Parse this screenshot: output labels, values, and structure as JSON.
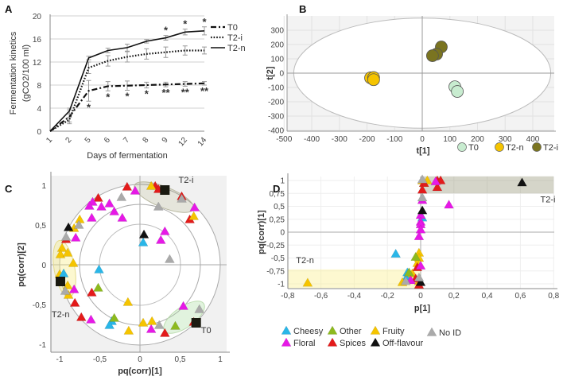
{
  "colors": {
    "T0_line": "#111111",
    "cheesy": "#29b6e8",
    "floral": "#e619e6",
    "other": "#8dba1e",
    "spices": "#e31b1b",
    "fruity": "#f5c400",
    "off_flavour": "#111111",
    "no_id": "#aaaaaa",
    "T0_score": "#c8ecd0",
    "T2n_score": "#f5c400",
    "T2i_score": "#7a7420"
  },
  "chart_data": [
    {
      "panel": "A",
      "type": "line",
      "ylabel": "Fermentation kinetics",
      "ylabel2": "(gCO2/100 ml)",
      "xlabel": "Days of fermentation",
      "categories": [
        "1",
        "2",
        "5",
        "6",
        "7",
        "8",
        "9",
        "12",
        "14"
      ],
      "yticks": [
        0,
        4,
        8,
        12,
        16,
        20
      ],
      "ylim": [
        0,
        20
      ],
      "grid": true,
      "legend": "right",
      "series": [
        {
          "name": "T0",
          "style": "dash-dot",
          "values": [
            0,
            2.5,
            7,
            7.8,
            7.9,
            8,
            8.1,
            8.2,
            8.3
          ],
          "errors": [
            0,
            1.2,
            1.8,
            0.8,
            0.8,
            0.5,
            0.4,
            0.4,
            0.3
          ],
          "stars_below": [
            "",
            "",
            "*",
            "*",
            "*",
            "*",
            "**",
            "**",
            "**"
          ]
        },
        {
          "name": "T2-i",
          "style": "dotted",
          "values": [
            0,
            2,
            11,
            12.2,
            12.9,
            13.4,
            13.7,
            14,
            14
          ],
          "errors": [
            0,
            0.4,
            1,
            0.9,
            0.9,
            0.9,
            0.9,
            0.8,
            0.6
          ]
        },
        {
          "name": "T2-n",
          "style": "solid",
          "values": [
            0,
            3.5,
            12.7,
            14,
            14.5,
            15.6,
            16.2,
            17.2,
            17.4
          ],
          "errors": [
            0,
            0.5,
            0.3,
            0.4,
            0.6,
            0.3,
            0.4,
            0.5,
            0.7
          ],
          "stars_above": [
            "",
            "",
            "",
            "",
            "",
            "",
            "*",
            "*",
            "*"
          ]
        }
      ]
    },
    {
      "panel": "B",
      "type": "scatter",
      "xlabel": "t[1]",
      "ylabel": "t[2]",
      "xticks": [
        -500,
        -400,
        -300,
        -200,
        -100,
        0,
        100,
        200,
        300,
        400
      ],
      "yticks": [
        300,
        200,
        100,
        0,
        -100,
        -200,
        -300,
        -400
      ],
      "xlim": [
        -500,
        470
      ],
      "ylim": [
        -400,
        400
      ],
      "legend": "bottom-right",
      "series": [
        {
          "name": "T0",
          "color_key": "T0_score",
          "points": [
            [
              118,
              -95
            ],
            [
              127,
              -128
            ]
          ]
        },
        {
          "name": "T2-n",
          "color_key": "T2n_score",
          "points": [
            [
              -187,
              -33
            ],
            [
              -176,
              -31
            ],
            [
              -176,
              -46
            ]
          ]
        },
        {
          "name": "T2-i",
          "color_key": "T2i_score",
          "points": [
            [
              69,
              183
            ],
            [
              52,
              133
            ],
            [
              37,
              122
            ]
          ]
        }
      ]
    },
    {
      "panel": "C",
      "type": "scatter",
      "xlabel": "pq(corr)[1]",
      "ylabel": "pq(corr)[2]",
      "xticks": [
        [
          -1,
          "-1"
        ],
        [
          -0.5,
          "-0,5"
        ],
        [
          0,
          "0"
        ],
        [
          0.5,
          "0,5"
        ],
        [
          1,
          "1"
        ]
      ],
      "yticks": [
        [
          1,
          "1"
        ],
        [
          0.5,
          "0,5"
        ],
        [
          0,
          "0"
        ],
        [
          -0.5,
          "-0,5"
        ],
        [
          -1,
          "-1"
        ]
      ],
      "group_labels": [
        {
          "text": "T2-i",
          "at": [
            0.48,
            1.03
          ]
        },
        {
          "text": "T2-n",
          "at": [
            -1.1,
            -0.66
          ]
        },
        {
          "text": "T0",
          "at": [
            0.76,
            -0.86
          ]
        }
      ],
      "group_centers": [
        [
          0.31,
          0.94
        ],
        [
          -0.99,
          -0.21
        ],
        [
          0.7,
          -0.73
        ]
      ],
      "points": {
        "spices": [
          [
            -0.16,
            0.98
          ],
          [
            0.19,
            0.99
          ],
          [
            0.23,
            0.95
          ],
          [
            -0.52,
            0.84
          ],
          [
            0.52,
            0.86
          ],
          [
            0.62,
            0.57
          ],
          [
            -0.92,
            0.32
          ],
          [
            -0.6,
            -0.35
          ],
          [
            -0.81,
            -0.48
          ],
          [
            -0.73,
            -0.66
          ],
          [
            0.31,
            -0.86
          ],
          [
            0.67,
            -0.72
          ]
        ],
        "floral": [
          [
            -0.06,
            0.93
          ],
          [
            -0.59,
            0.79
          ],
          [
            -0.63,
            0.74
          ],
          [
            -0.48,
            0.73
          ],
          [
            -0.38,
            0.77
          ],
          [
            -0.32,
            0.67
          ],
          [
            -0.6,
            0.59
          ],
          [
            -0.22,
            0.59
          ],
          [
            -0.8,
            0.34
          ],
          [
            0.31,
            0.42
          ],
          [
            0.26,
            0.31
          ],
          [
            0.68,
            0.72
          ],
          [
            -0.82,
            -0.31
          ],
          [
            -0.61,
            -0.69
          ],
          [
            0.14,
            -0.81
          ],
          [
            0.54,
            -0.52
          ]
        ],
        "fruity": [
          [
            0.14,
            0.99
          ],
          [
            0.67,
            0.61
          ],
          [
            -0.75,
            0.57
          ],
          [
            -0.82,
            0.46
          ],
          [
            -0.97,
            0.21
          ],
          [
            -0.99,
            0.13
          ],
          [
            -0.9,
            0.15
          ],
          [
            -0.83,
            0.02
          ],
          [
            -1.0,
            -0.12
          ],
          [
            -0.9,
            -0.26
          ],
          [
            -0.89,
            -0.38
          ],
          [
            -0.15,
            -0.47
          ],
          [
            0.04,
            -0.73
          ],
          [
            0.15,
            -0.71
          ],
          [
            -0.14,
            -0.83
          ]
        ],
        "no_id": [
          [
            -0.23,
            0.85
          ],
          [
            0.52,
            0.83
          ],
          [
            0.23,
            0.73
          ],
          [
            -0.76,
            0.5
          ],
          [
            -0.92,
            0.35
          ],
          [
            0.37,
            0.07
          ],
          [
            -0.93,
            -0.33
          ],
          [
            0.24,
            -0.76
          ],
          [
            0.74,
            -0.56
          ]
        ],
        "cheesy": [
          [
            0.04,
            0.28
          ],
          [
            -0.51,
            -0.06
          ],
          [
            -0.95,
            -0.11
          ],
          [
            -0.35,
            -0.71
          ],
          [
            -0.38,
            -0.76
          ]
        ],
        "other": [
          [
            -0.52,
            -0.29
          ],
          [
            -0.32,
            -0.67
          ],
          [
            0.44,
            -0.77
          ]
        ],
        "off_flavour": [
          [
            -0.89,
            0.47
          ],
          [
            0.05,
            0.38
          ]
        ]
      }
    },
    {
      "panel": "D",
      "type": "scatter",
      "xlabel": "p[1]",
      "ylabel": "pq(corr)[1]",
      "xticks": [
        [
          -0.8,
          "-0,8"
        ],
        [
          -0.6,
          "-0,6"
        ],
        [
          -0.4,
          "-0,4"
        ],
        [
          -0.2,
          "-0,2"
        ],
        [
          0,
          "0"
        ],
        [
          0.2,
          "0,2"
        ],
        [
          0.4,
          "0,4"
        ],
        [
          0.6,
          "0,6"
        ],
        [
          0.8,
          "0,8"
        ]
      ],
      "yticks": [
        [
          1,
          "1"
        ],
        [
          0.75,
          "0,75"
        ],
        [
          0.5,
          "0,5"
        ],
        [
          0.25,
          "0,25"
        ],
        [
          0,
          "0"
        ],
        [
          -0.25,
          "-0,25"
        ],
        [
          -0.5,
          "-0,5"
        ],
        [
          -0.75,
          "-0,75"
        ],
        [
          -1,
          "-1"
        ]
      ],
      "group_labels": [
        {
          "text": "T2-i",
          "at": [
            0.72,
            0.58
          ]
        },
        {
          "text": "T2-n",
          "at": [
            -0.75,
            -0.6
          ]
        }
      ],
      "points": {
        "cheesy": [
          [
            -0.15,
            -0.42
          ],
          [
            0.01,
            0.28
          ],
          [
            -0.08,
            -0.78
          ],
          [
            -0.08,
            -0.85
          ]
        ],
        "fruity": [
          [
            -0.68,
            -0.98
          ],
          [
            0.01,
            1.0
          ],
          [
            0.04,
            1.0
          ],
          [
            -0.01,
            -0.4
          ],
          [
            -0.01,
            -0.5
          ],
          [
            -0.02,
            -0.6
          ],
          [
            -0.05,
            -0.8
          ],
          [
            -0.11,
            -0.97
          ],
          [
            -0.01,
            -0.95
          ],
          [
            0.02,
            0.95
          ]
        ],
        "other": [
          [
            -0.03,
            -0.48
          ],
          [
            -0.07,
            -0.78
          ]
        ],
        "spices": [
          [
            0.02,
            0.95
          ],
          [
            0.01,
            0.82
          ],
          [
            0.1,
            1.0
          ],
          [
            0.12,
            1.0
          ],
          [
            0.1,
            0.87
          ],
          [
            -0.02,
            -0.68
          ],
          [
            -0.03,
            -0.9
          ],
          [
            -0.01,
            -1.02
          ]
        ],
        "floral": [
          [
            0.09,
            0.98
          ],
          [
            0.17,
            0.53
          ],
          [
            0.01,
            0.62
          ],
          [
            0.0,
            0.33
          ],
          [
            0.0,
            0.2
          ],
          [
            0.0,
            0.15
          ],
          [
            0.0,
            0.05
          ],
          [
            -0.01,
            -0.08
          ],
          [
            0.0,
            -0.65
          ],
          [
            -0.06,
            -0.93
          ]
        ],
        "off_flavour": [
          [
            0.61,
            0.96
          ],
          [
            0.01,
            0.42
          ],
          [
            0.0,
            -0.97
          ]
        ],
        "no_id": [
          [
            0.01,
            0.67
          ],
          [
            0.01,
            1.02
          ],
          [
            -0.01,
            -0.88
          ],
          [
            -0.09,
            -0.95
          ]
        ]
      }
    }
  ],
  "panels": {
    "a": "A",
    "b": "B",
    "c": "C",
    "d": "D"
  },
  "legend_d": [
    {
      "key": "cheesy",
      "label": "Cheesy"
    },
    {
      "key": "other",
      "label": "Other"
    },
    {
      "key": "fruity",
      "label": "Fruity"
    },
    {
      "key": "no_id",
      "label": "No ID"
    },
    {
      "key": "floral",
      "label": "Floral"
    },
    {
      "key": "spices",
      "label": "Spices"
    },
    {
      "key": "off_flavour",
      "label": "Off-flavour"
    }
  ]
}
